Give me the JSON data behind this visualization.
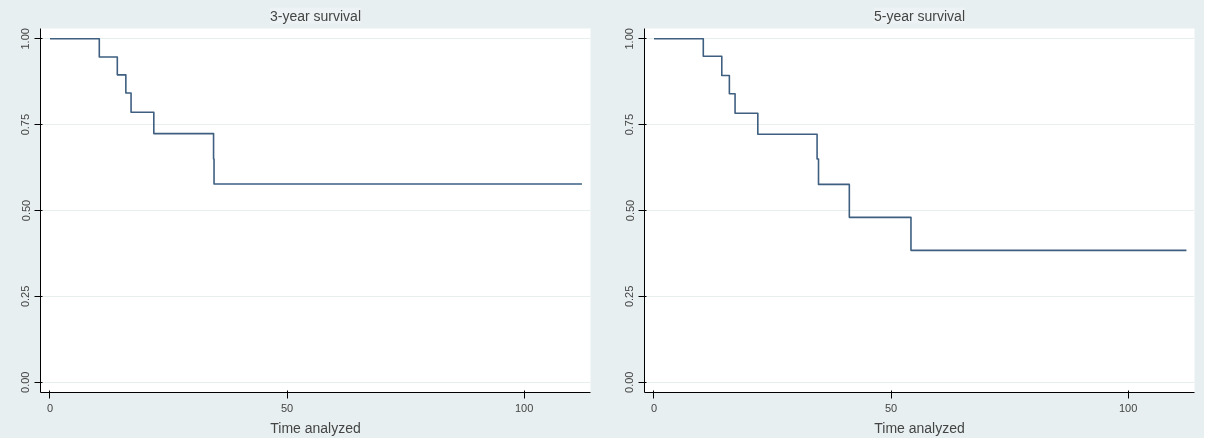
{
  "chart_data": [
    {
      "type": "step",
      "title": "3-year survival",
      "xlabel": "Time analyzed",
      "x": [
        0,
        10.4,
        14.2,
        16.0,
        17.1,
        21.9,
        34.5,
        34.6,
        112.2
      ],
      "series": [
        {
          "color": "#3e5f80",
          "values": [
            1.0,
            0.947,
            0.895,
            0.842,
            0.786,
            0.724,
            0.65,
            0.577,
            0.577
          ]
        }
      ],
      "xlim": [
        -2,
        114
      ],
      "xticks": [
        0,
        50,
        100
      ],
      "ylim": [
        -0.03,
        1.03
      ],
      "yticks": [
        {
          "value": 0,
          "label": "0.00"
        },
        {
          "value": 0.25,
          "label": "0.25"
        },
        {
          "value": 0.5,
          "label": "0.50"
        },
        {
          "value": 0.75,
          "label": "0.75"
        },
        {
          "value": 1,
          "label": "1.00"
        }
      ],
      "grid": "y"
    },
    {
      "type": "step",
      "title": "5-year survival",
      "xlabel": "Time analyzed",
      "x": [
        0,
        10.4,
        14.3,
        15.9,
        17.1,
        21.9,
        34.4,
        34.7,
        41.2,
        54.2,
        112.3
      ],
      "series": [
        {
          "color": "#3e5f80",
          "values": [
            1.0,
            0.949,
            0.893,
            0.84,
            0.783,
            0.722,
            0.65,
            0.576,
            0.48,
            0.384,
            0.384
          ]
        }
      ],
      "xlim": [
        -2,
        114
      ],
      "xticks": [
        0,
        50,
        100
      ],
      "ylim": [
        -0.03,
        1.03
      ],
      "yticks": [
        {
          "value": 0,
          "label": "0.00"
        },
        {
          "value": 0.25,
          "label": "0.25"
        },
        {
          "value": 0.5,
          "label": "0.50"
        },
        {
          "value": 0.75,
          "label": "0.75"
        },
        {
          "value": 1,
          "label": "1.00"
        }
      ],
      "grid": "y"
    }
  ]
}
